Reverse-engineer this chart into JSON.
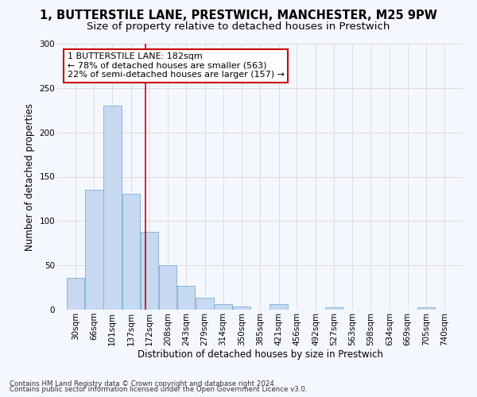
{
  "title1": "1, BUTTERSTILE LANE, PRESTWICH, MANCHESTER, M25 9PW",
  "title2": "Size of property relative to detached houses in Prestwich",
  "xlabel": "Distribution of detached houses by size in Prestwich",
  "ylabel": "Number of detached properties",
  "bar_labels": [
    "30sqm",
    "66sqm",
    "101sqm",
    "137sqm",
    "172sqm",
    "208sqm",
    "243sqm",
    "279sqm",
    "314sqm",
    "350sqm",
    "385sqm",
    "421sqm",
    "456sqm",
    "492sqm",
    "527sqm",
    "563sqm",
    "598sqm",
    "634sqm",
    "669sqm",
    "705sqm",
    "740sqm"
  ],
  "bar_values": [
    36,
    135,
    230,
    131,
    88,
    50,
    27,
    13,
    6,
    4,
    0,
    6,
    0,
    0,
    3,
    0,
    0,
    0,
    0,
    3,
    0
  ],
  "bar_color": "#c6d9f0",
  "bar_edge_color": "#7bafd4",
  "property_label": "1 BUTTERSTILE LANE: 182sqm",
  "annotation_line1": "← 78% of detached houses are smaller (563)",
  "annotation_line2": "22% of semi-detached houses are larger (157) →",
  "annotation_box_color": "#ffffff",
  "annotation_box_edge": "#cc0000",
  "vline_color": "#cc0000",
  "vline_x": 182,
  "bins_start": [
    30,
    66,
    101,
    137,
    172,
    208,
    243,
    279,
    314,
    350,
    385,
    421,
    456,
    492,
    527,
    563,
    598,
    634,
    669,
    705,
    740
  ],
  "bin_width": 35,
  "ylim": [
    0,
    300
  ],
  "yticks": [
    0,
    50,
    100,
    150,
    200,
    250,
    300
  ],
  "footnote1": "Contains HM Land Registry data © Crown copyright and database right 2024.",
  "footnote2": "Contains public sector information licensed under the Open Government Licence v3.0.",
  "background_color": "#f5f7ff",
  "plot_bg_color": "#f5f7ff",
  "grid_color": "#dddddd",
  "title_fontsize": 10.5,
  "subtitle_fontsize": 9.5,
  "label_fontsize": 8.5,
  "tick_fontsize": 7.5,
  "annot_fontsize": 8
}
